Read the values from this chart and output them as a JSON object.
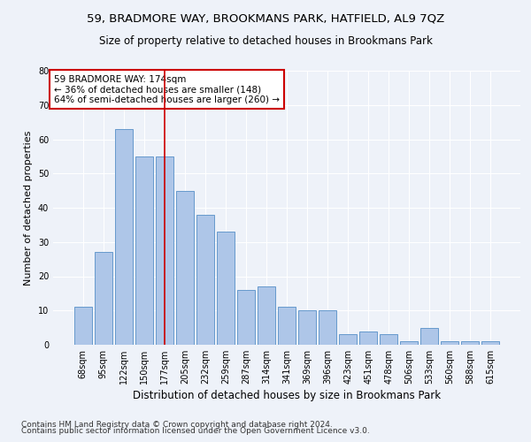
{
  "title": "59, BRADMORE WAY, BROOKMANS PARK, HATFIELD, AL9 7QZ",
  "subtitle": "Size of property relative to detached houses in Brookmans Park",
  "xlabel": "Distribution of detached houses by size in Brookmans Park",
  "ylabel": "Number of detached properties",
  "categories": [
    "68sqm",
    "95sqm",
    "122sqm",
    "150sqm",
    "177sqm",
    "205sqm",
    "232sqm",
    "259sqm",
    "287sqm",
    "314sqm",
    "341sqm",
    "369sqm",
    "396sqm",
    "423sqm",
    "451sqm",
    "478sqm",
    "506sqm",
    "533sqm",
    "560sqm",
    "588sqm",
    "615sqm"
  ],
  "values": [
    11,
    27,
    63,
    55,
    55,
    45,
    38,
    33,
    16,
    17,
    11,
    10,
    10,
    3,
    4,
    3,
    1,
    5,
    1,
    1,
    1
  ],
  "bar_color": "#aec6e8",
  "bar_edge_color": "#6699cc",
  "highlight_color": "#cc0000",
  "highlight_index": 4,
  "annotation_line1": "59 BRADMORE WAY: 174sqm",
  "annotation_line2": "← 36% of detached houses are smaller (148)",
  "annotation_line3": "64% of semi-detached houses are larger (260) →",
  "annotation_box_color": "white",
  "annotation_box_edge": "#cc0000",
  "ylim": [
    0,
    80
  ],
  "yticks": [
    0,
    10,
    20,
    30,
    40,
    50,
    60,
    70,
    80
  ],
  "background_color": "#eef2f9",
  "grid_color": "#ffffff",
  "footer_line1": "Contains HM Land Registry data © Crown copyright and database right 2024.",
  "footer_line2": "Contains public sector information licensed under the Open Government Licence v3.0.",
  "title_fontsize": 9.5,
  "subtitle_fontsize": 8.5,
  "xlabel_fontsize": 8.5,
  "ylabel_fontsize": 8,
  "tick_fontsize": 7,
  "annotation_fontsize": 7.5,
  "footer_fontsize": 6.5
}
